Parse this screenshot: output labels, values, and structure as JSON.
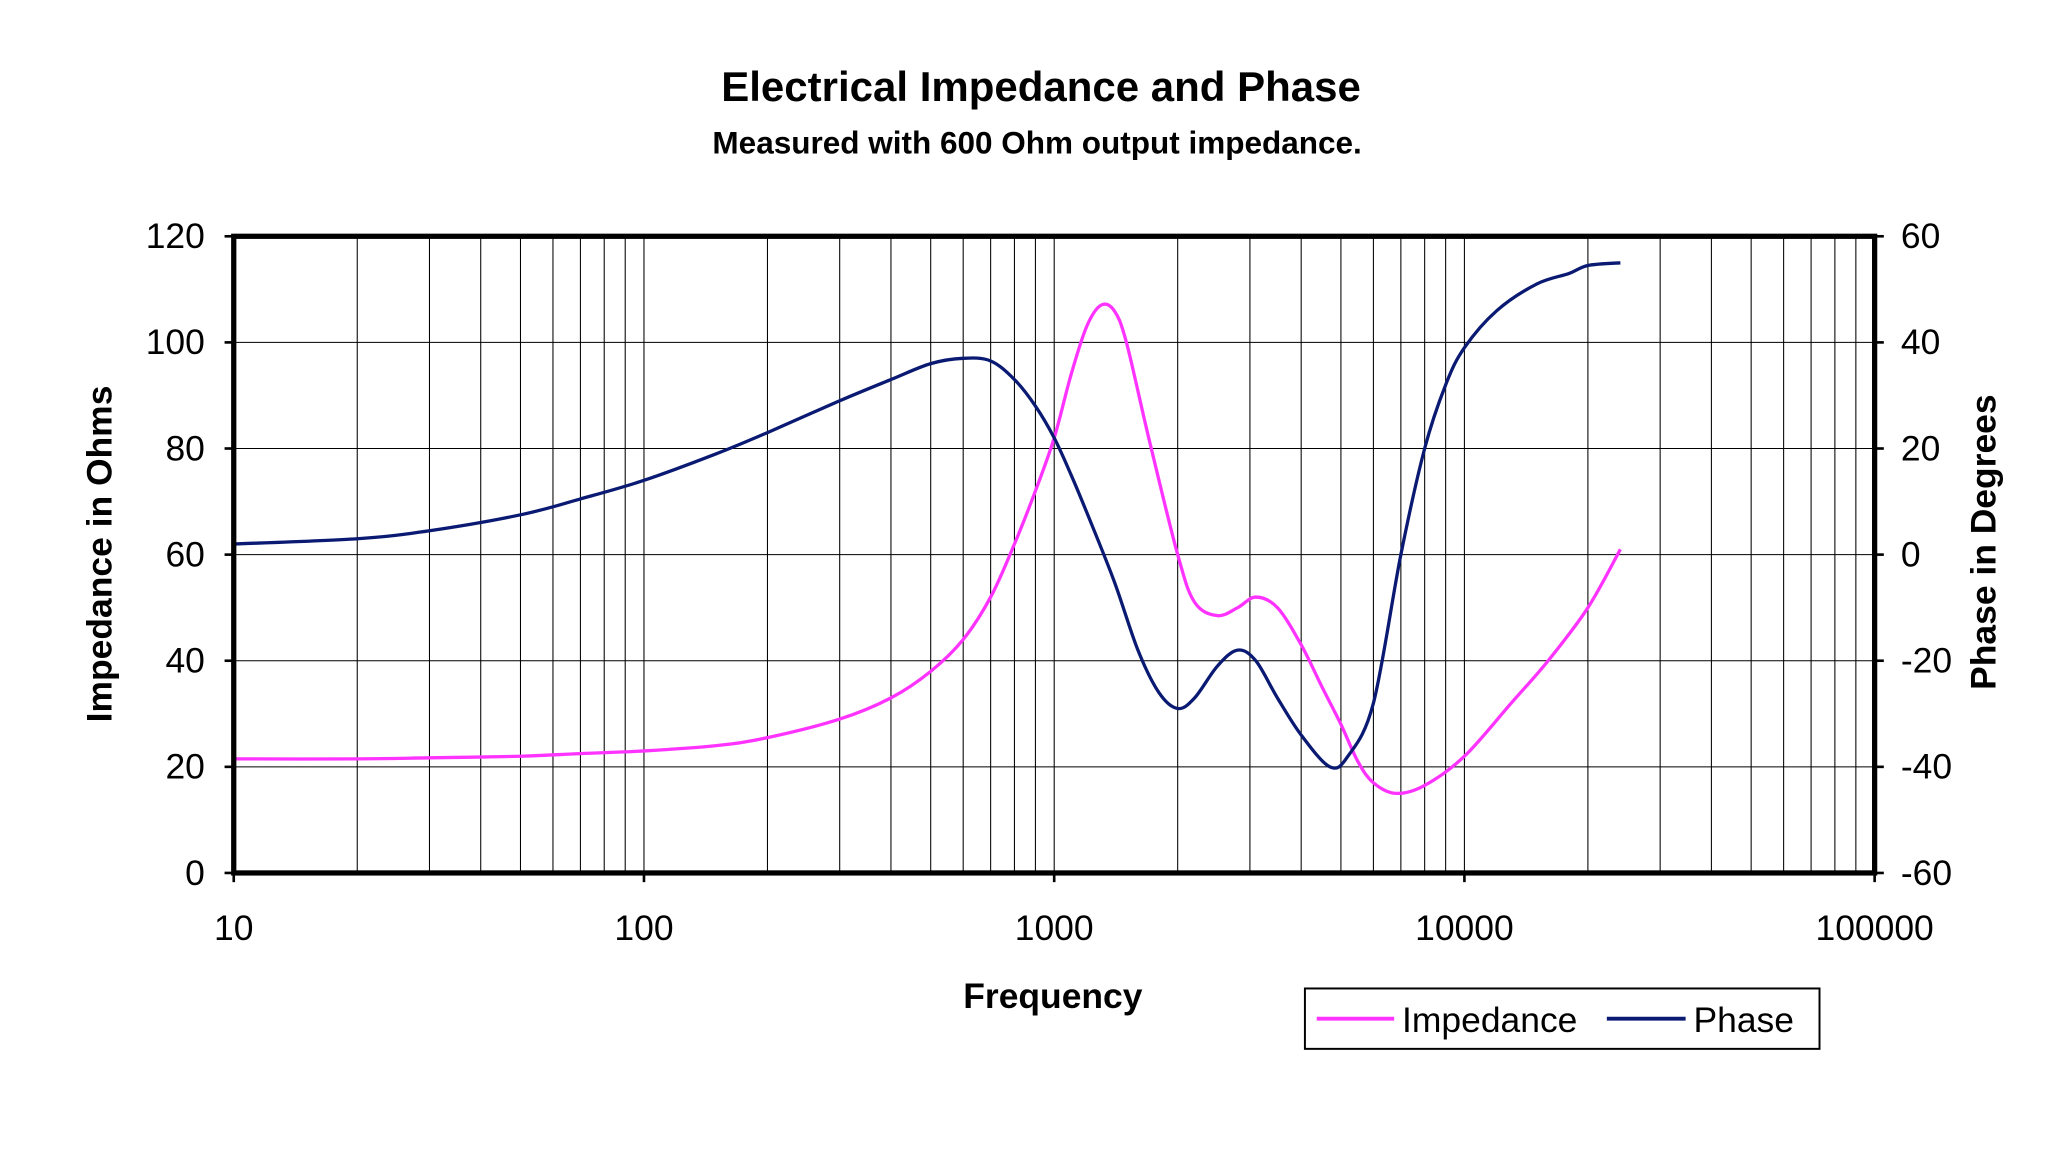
{
  "chart_data": {
    "type": "line",
    "title": "Electrical Impedance and Phase",
    "subtitle": "Measured with 600 Ohm output impedance.",
    "xlabel": "Frequency",
    "ylabel": "Impedance in Ohms",
    "y2label": "Phase in Degrees",
    "xscale": "log",
    "xlim": [
      10,
      100000
    ],
    "ylim": [
      0,
      120
    ],
    "y2lim": [
      -60,
      60
    ],
    "x_ticks": [
      "10",
      "100",
      "1000",
      "10000",
      "100000"
    ],
    "y_ticks": [
      "0",
      "20",
      "40",
      "60",
      "80",
      "100",
      "120"
    ],
    "y2_ticks": [
      "-60",
      "-40",
      "-20",
      "0",
      "20",
      "40",
      "60"
    ],
    "grid": true,
    "legend_position": "bottom-right",
    "series": [
      {
        "name": "Impedance",
        "axis": "left",
        "color": "#ff33ff",
        "points": [
          [
            10,
            21.5
          ],
          [
            20,
            21.5
          ],
          [
            30,
            21.7
          ],
          [
            50,
            22
          ],
          [
            70,
            22.5
          ],
          [
            100,
            23
          ],
          [
            150,
            24
          ],
          [
            200,
            25.5
          ],
          [
            300,
            29
          ],
          [
            400,
            33
          ],
          [
            500,
            38
          ],
          [
            600,
            44
          ],
          [
            700,
            52
          ],
          [
            800,
            62
          ],
          [
            900,
            72
          ],
          [
            1000,
            82
          ],
          [
            1100,
            94
          ],
          [
            1200,
            103
          ],
          [
            1300,
            107
          ],
          [
            1400,
            106
          ],
          [
            1500,
            100
          ],
          [
            1700,
            82
          ],
          [
            2000,
            60
          ],
          [
            2200,
            51
          ],
          [
            2500,
            48.5
          ],
          [
            2800,
            50
          ],
          [
            3100,
            52
          ],
          [
            3500,
            50
          ],
          [
            4000,
            43
          ],
          [
            4500,
            35
          ],
          [
            5000,
            28
          ],
          [
            5500,
            21
          ],
          [
            6000,
            17
          ],
          [
            6800,
            15
          ],
          [
            8000,
            16.5
          ],
          [
            10000,
            22
          ],
          [
            13000,
            32
          ],
          [
            16000,
            40
          ],
          [
            20000,
            50
          ],
          [
            24000,
            61
          ]
        ]
      },
      {
        "name": "Phase",
        "axis": "right",
        "color": "#0a1a73",
        "points": [
          [
            10,
            2
          ],
          [
            20,
            3
          ],
          [
            30,
            4.5
          ],
          [
            50,
            7.5
          ],
          [
            70,
            10.5
          ],
          [
            100,
            14
          ],
          [
            150,
            19
          ],
          [
            200,
            23
          ],
          [
            300,
            29
          ],
          [
            400,
            33
          ],
          [
            500,
            36
          ],
          [
            600,
            37
          ],
          [
            700,
            36.5
          ],
          [
            800,
            33
          ],
          [
            900,
            28
          ],
          [
            1000,
            22
          ],
          [
            1100,
            15
          ],
          [
            1200,
            8
          ],
          [
            1400,
            -5
          ],
          [
            1600,
            -18
          ],
          [
            1800,
            -26
          ],
          [
            2000,
            -29
          ],
          [
            2200,
            -27
          ],
          [
            2500,
            -21
          ],
          [
            2800,
            -18
          ],
          [
            3100,
            -20
          ],
          [
            3500,
            -27
          ],
          [
            4000,
            -34
          ],
          [
            4700,
            -40
          ],
          [
            5200,
            -38
          ],
          [
            6000,
            -28
          ],
          [
            7000,
            0
          ],
          [
            8000,
            20
          ],
          [
            9000,
            32
          ],
          [
            10000,
            39
          ],
          [
            12000,
            46
          ],
          [
            15000,
            51
          ],
          [
            18000,
            53
          ],
          [
            20000,
            54.5
          ],
          [
            24000,
            55
          ]
        ]
      }
    ]
  }
}
